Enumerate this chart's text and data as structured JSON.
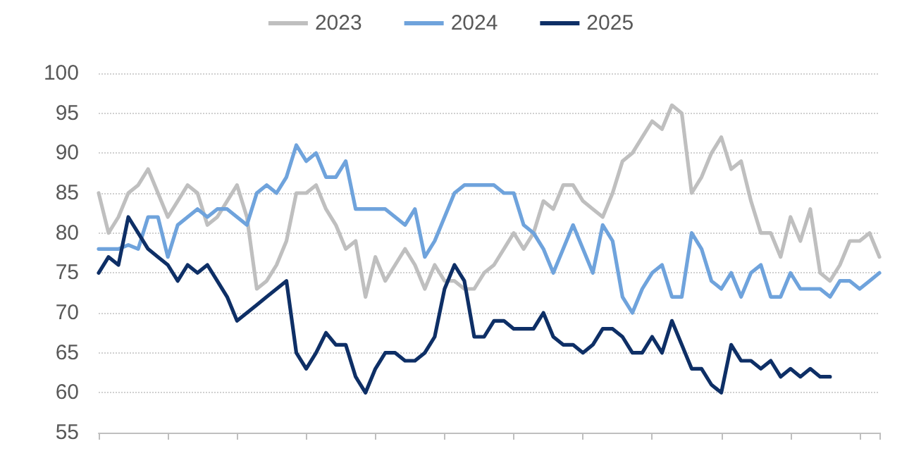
{
  "chart_data": {
    "type": "line",
    "categories": [
      null,
      null,
      null,
      null,
      null,
      null,
      null,
      null,
      null,
      null,
      null,
      null,
      null,
      null,
      null,
      null,
      null,
      null,
      null,
      null,
      null,
      null,
      null,
      null,
      null,
      null,
      null,
      null,
      null,
      null,
      null,
      null,
      null,
      null,
      null,
      null,
      null,
      null,
      null,
      null,
      null,
      null,
      null,
      null,
      null,
      null,
      null,
      null,
      null,
      null,
      null,
      null,
      null,
      null,
      null,
      null,
      null,
      null,
      null,
      null,
      null,
      null,
      null,
      null,
      null,
      null,
      null,
      null,
      null,
      null,
      null,
      null,
      null,
      null,
      null,
      null,
      null,
      null,
      null,
      null
    ],
    "series": [
      {
        "name": "2023",
        "color": "#bfbfbf",
        "values": [
          85,
          80,
          82,
          85,
          86,
          88,
          85,
          82,
          84,
          86,
          85,
          81,
          82,
          84,
          86,
          82,
          73,
          74,
          76,
          79,
          85,
          85,
          86,
          83,
          81,
          78,
          79,
          72,
          77,
          74,
          76,
          78,
          76,
          73,
          76,
          74,
          74,
          73,
          73,
          75,
          76,
          78,
          80,
          78,
          80,
          84,
          83,
          86,
          86,
          84,
          83,
          82,
          85,
          89,
          90,
          92,
          94,
          93,
          96,
          95,
          85,
          87,
          90,
          92,
          88,
          89,
          84,
          80,
          80,
          77,
          82,
          79,
          83,
          75,
          74,
          76,
          79,
          79,
          80,
          77
        ]
      },
      {
        "name": "2024",
        "color": "#6fa3dc",
        "values": [
          78,
          78,
          78,
          78.5,
          78,
          82,
          82,
          77,
          81,
          82,
          83,
          82,
          83,
          83,
          82,
          81,
          85,
          86,
          85,
          87,
          91,
          89,
          90,
          87,
          87,
          89,
          83,
          83,
          83,
          83,
          82,
          81,
          83,
          77,
          79,
          82,
          85,
          86,
          86,
          86,
          86,
          85,
          85,
          81,
          80,
          78,
          75,
          78,
          81,
          78,
          75,
          81,
          79,
          72,
          70,
          73,
          75,
          76,
          72,
          72,
          80,
          78,
          74,
          73,
          75,
          72,
          75,
          76,
          72,
          72,
          75,
          73,
          73,
          73,
          72,
          74,
          74,
          73,
          74,
          75
        ]
      },
      {
        "name": "2025",
        "color": "#0e2f66",
        "values": [
          75,
          77,
          76,
          82,
          80,
          78,
          77,
          76,
          74,
          76,
          75,
          76,
          74,
          72,
          69,
          70,
          71,
          72,
          73,
          74,
          65,
          63,
          65,
          67.5,
          66,
          66,
          62,
          60,
          63,
          65,
          65,
          64,
          64,
          65,
          67,
          73,
          76,
          74,
          67,
          67,
          69,
          69,
          68,
          68,
          68,
          70,
          67,
          66,
          66,
          65,
          66,
          68,
          68,
          67,
          65,
          65,
          67,
          65,
          69,
          66,
          63,
          63,
          61,
          60,
          66,
          64,
          64,
          63,
          64,
          62,
          63,
          62,
          63,
          62,
          62,
          null,
          null,
          null,
          null,
          null
        ]
      }
    ],
    "ylim": [
      55,
      100
    ],
    "yticks": [
      55,
      60,
      65,
      70,
      75,
      80,
      85,
      90,
      95,
      100
    ],
    "grid": "y",
    "legend": "top",
    "marker": "none",
    "line_style": "solid"
  }
}
